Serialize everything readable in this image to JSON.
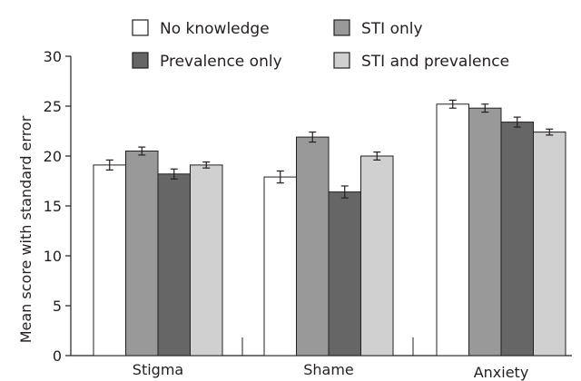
{
  "chart_data": {
    "type": "bar",
    "categories": [
      "Stigma",
      "Shame",
      "Anxiety"
    ],
    "ylabel": "Mean score with standard error",
    "ylim": [
      0,
      30
    ],
    "yticks": [
      "0",
      "5",
      "10",
      "15",
      "20",
      "25",
      "30"
    ],
    "grid": false,
    "legend_position": "top",
    "series": [
      {
        "name": "No knowledge",
        "color": "#ffffff",
        "values": [
          19.1,
          17.9,
          25.2
        ],
        "errors": [
          0.5,
          0.6,
          0.4
        ]
      },
      {
        "name": "STI only",
        "color": "#999999",
        "values": [
          20.5,
          21.9,
          24.8
        ],
        "errors": [
          0.4,
          0.5,
          0.4
        ]
      },
      {
        "name": "Prevalence only",
        "color": "#666666",
        "values": [
          18.2,
          16.4,
          23.4
        ],
        "errors": [
          0.5,
          0.6,
          0.5
        ]
      },
      {
        "name": "STI and prevalence",
        "color": "#d0d0d0",
        "values": [
          19.1,
          20.0,
          22.4
        ],
        "errors": [
          0.3,
          0.4,
          0.3
        ]
      }
    ]
  }
}
